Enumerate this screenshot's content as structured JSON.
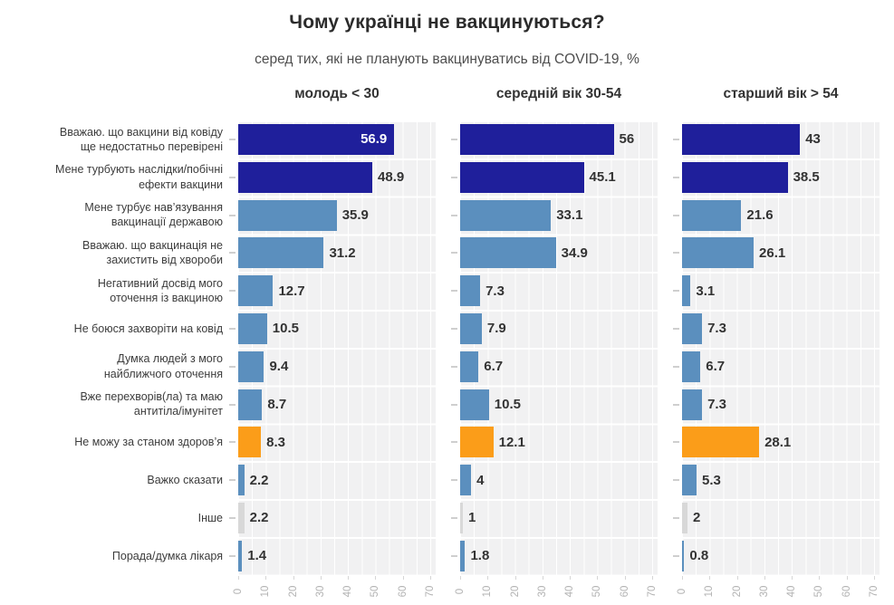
{
  "title": "Чому українці не вакцинуються?",
  "subtitle": "серед тих, які не планують вакцинуватись від COVID-19, %",
  "panels": [
    {
      "header": "молодь < 30"
    },
    {
      "header": "середній вік 30-54"
    },
    {
      "header": "старший вік > 54"
    }
  ],
  "colors": {
    "navy": "#1f1f9b",
    "steel_blue": "#5b8fbe",
    "orange": "#fb9d19",
    "gray_bar": "#d8d8d8",
    "plot_bg": "#f1f1f2",
    "grid_line": "#ffffff",
    "axis_text": "#b3b3b3",
    "value_text": "#333333",
    "label_text": "#3c3c3c"
  },
  "chart_data": {
    "type": "bar",
    "orientation": "horizontal",
    "title": "Чому українці не вакцинуються?",
    "subtitle": "серед тих, які не планують вакцинуватись від COVID-19, %",
    "categories": [
      "Вважаю. що вакцини від ковіду\nще недостатньо перевірені",
      "Мене турбують наслідки/побічні\nефекти вакцини",
      "Мене турбує нав’язування\nвакцинації державою",
      "Вважаю. що вакцинація не\nзахистить від хвороби",
      "Негативний досвід мого\nоточення із вакциною",
      "Не боюся захворіти на ковід",
      "Думка людей з мого\nнайближчого оточення",
      "Вже перехворів(ла) та маю\nантитіла/імунітет",
      "Не можу за станом здоров’я",
      "Важко сказати",
      "Інше",
      "Порада/думка лікаря"
    ],
    "row_colors": [
      "navy",
      "navy",
      "steel_blue",
      "steel_blue",
      "steel_blue",
      "steel_blue",
      "steel_blue",
      "steel_blue",
      "orange",
      "steel_blue",
      "gray_bar",
      "steel_blue"
    ],
    "series": [
      {
        "name": "молодь < 30",
        "values": [
          56.9,
          48.9,
          35.9,
          31.2,
          12.7,
          10.5,
          9.4,
          8.7,
          8.3,
          2.2,
          2.2,
          1.4
        ],
        "labels": [
          "56.9",
          "48.9",
          "35.9",
          "31.2",
          "12.7",
          "10.5",
          "9.4",
          "8.7",
          "8.3",
          "2.2",
          "2.2",
          "1.4"
        ]
      },
      {
        "name": "середній вік 30-54",
        "values": [
          56,
          45.1,
          33.1,
          34.9,
          7.3,
          7.9,
          6.7,
          10.5,
          12.1,
          4,
          1,
          1.8
        ],
        "labels": [
          "56",
          "45.1",
          "33.1",
          "34.9",
          "7.3",
          "7.9",
          "6.7",
          "10.5",
          "12.1",
          "4",
          "1",
          "1.8"
        ]
      },
      {
        "name": "старший вік > 54",
        "values": [
          43,
          38.5,
          21.6,
          26.1,
          3.1,
          7.3,
          6.7,
          7.3,
          28.1,
          5.3,
          2,
          0.8
        ],
        "labels": [
          "43",
          "38.5",
          "21.6",
          "26.1",
          "3.1",
          "7.3",
          "6.7",
          "7.3",
          "28.1",
          "5.3",
          "2",
          "0.8"
        ]
      }
    ],
    "label_inside": {
      "series": 0,
      "row": 0
    },
    "xlim": [
      0,
      72
    ],
    "x_ticks": [
      0,
      10,
      20,
      30,
      40,
      50,
      60,
      70
    ],
    "minor_grid_step": 5,
    "grid": true,
    "legend": false
  }
}
